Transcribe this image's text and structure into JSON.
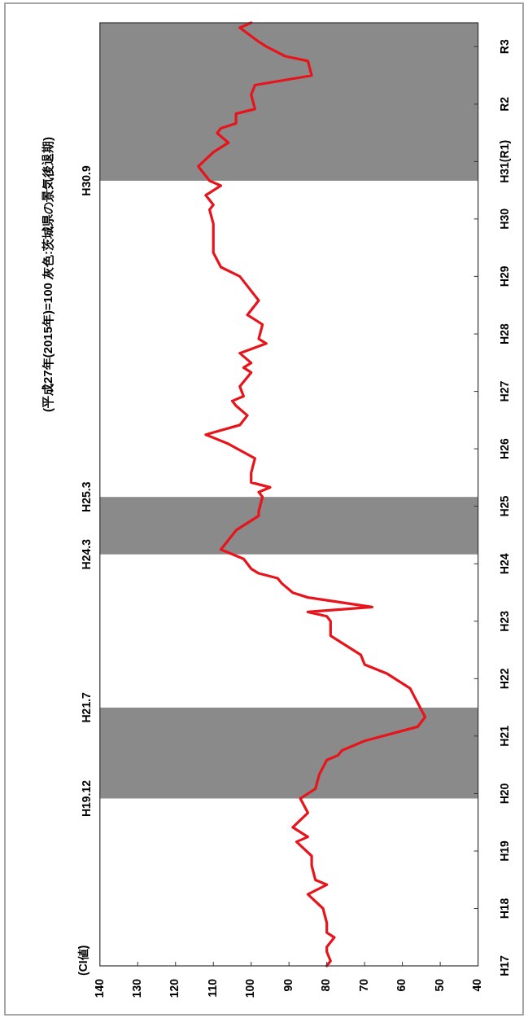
{
  "chart_data": {
    "type": "line",
    "orientation": "horizontal",
    "title": "(平成27年(2015年)=100  灰色:茨城県の景気後退期)",
    "ylabel": "(CI値)",
    "x": [
      "2005-01",
      "2005-02",
      "2005-04",
      "2005-05",
      "2005-07",
      "2005-08",
      "2005-10",
      "2006-01",
      "2006-04",
      "2006-06",
      "2006-07",
      "2006-10",
      "2006-12",
      "2007-03",
      "2007-04",
      "2007-06",
      "2007-09",
      "2007-12",
      "2008-02",
      "2008-05",
      "2008-08",
      "2008-09",
      "2008-10",
      "2008-12",
      "2009-03",
      "2009-05",
      "2009-08",
      "2009-11",
      "2010-02",
      "2010-04",
      "2010-06",
      "2010-10",
      "2011-01",
      "2011-02",
      "2011-03",
      "2011-04",
      "2011-06",
      "2011-07",
      "2011-09",
      "2011-10",
      "2011-11",
      "2011-12",
      "2012-02",
      "2012-04",
      "2012-08",
      "2012-11",
      "2012-12",
      "2013-03",
      "2013-04",
      "2013-05",
      "2013-06",
      "2013-08",
      "2013-11",
      "2014-02",
      "2014-04",
      "2014-06",
      "2014-08",
      "2014-10",
      "2014-11",
      "2014-12",
      "2015-02",
      "2015-05",
      "2015-06",
      "2015-07",
      "2015-09",
      "2015-11",
      "2015-12",
      "2016-03",
      "2016-04",
      "2016-05",
      "2016-08",
      "2017-01",
      "2017-03",
      "2017-06",
      "2017-10",
      "2017-12",
      "2018-03",
      "2018-04",
      "2018-06",
      "2018-08",
      "2018-09",
      "2018-12",
      "2019-03",
      "2019-05",
      "2019-07",
      "2019-08",
      "2019-09",
      "2019-11",
      "2019-12",
      "2020-03",
      "2020-05",
      "2020-07",
      "2020-10",
      "2020-11",
      "2021-01",
      "2021-02",
      "2021-05",
      "2021-06"
    ],
    "series": [
      {
        "color": "#e8141b",
        "values": [
          80,
          79,
          80,
          80,
          78,
          80,
          80,
          81,
          85,
          80,
          83,
          84,
          84,
          88,
          85,
          89,
          85,
          87,
          83,
          82,
          80,
          77,
          76,
          70,
          56,
          54,
          56,
          58,
          64,
          70,
          71,
          79,
          79,
          80,
          85,
          68,
          85,
          89,
          92,
          93,
          98,
          100,
          102,
          108,
          104,
          98,
          98,
          97,
          98,
          95,
          100,
          100,
          99,
          106,
          112,
          103,
          101,
          104,
          105,
          102,
          103,
          100,
          102,
          100,
          103,
          96,
          98,
          97,
          99,
          101,
          98,
          103,
          108,
          110,
          110,
          110,
          111,
          110,
          112,
          108,
          111,
          114,
          110,
          106,
          109,
          108,
          104,
          104,
          99,
          100,
          99,
          84,
          85,
          91,
          96,
          98,
          103,
          100
        ]
      }
    ],
    "xlim": [
      140,
      40
    ],
    "xticks": [
      140,
      130,
      120,
      110,
      100,
      90,
      80,
      70,
      60,
      50,
      40
    ],
    "ylim": [
      "2005-01",
      "2021-06"
    ],
    "yticks": [
      {
        "value": "2005-01",
        "label": "H17"
      },
      {
        "value": "2006-01",
        "label": "H18"
      },
      {
        "value": "2007-01",
        "label": "H19"
      },
      {
        "value": "2008-01",
        "label": "H20"
      },
      {
        "value": "2009-01",
        "label": "H21"
      },
      {
        "value": "2010-01",
        "label": "H22"
      },
      {
        "value": "2011-01",
        "label": "H23"
      },
      {
        "value": "2012-01",
        "label": "H24"
      },
      {
        "value": "2013-01",
        "label": "H25"
      },
      {
        "value": "2014-01",
        "label": "H26"
      },
      {
        "value": "2015-01",
        "label": "H27"
      },
      {
        "value": "2016-01",
        "label": "H28"
      },
      {
        "value": "2017-01",
        "label": "H29"
      },
      {
        "value": "2018-01",
        "label": "H30"
      },
      {
        "value": "2019-01",
        "label": "H31(R1)"
      },
      {
        "value": "2020-01",
        "label": "R2"
      },
      {
        "value": "2021-01",
        "label": "R3"
      }
    ],
    "bands": [
      {
        "axis": "y",
        "from": "2007-12",
        "to": "2009-07",
        "color": "#8a8a8a"
      },
      {
        "axis": "y",
        "from": "2012-03",
        "to": "2013-03",
        "color": "#8a8a8a"
      },
      {
        "axis": "y",
        "from": "2018-09",
        "to": "2021-06",
        "color": "#8a8a8a"
      }
    ],
    "annotations": [
      "H19.12",
      "H21.7",
      "H24.3",
      "H25.3",
      "H30.9"
    ],
    "grid": false,
    "marker": "none",
    "line_style": "solid"
  }
}
